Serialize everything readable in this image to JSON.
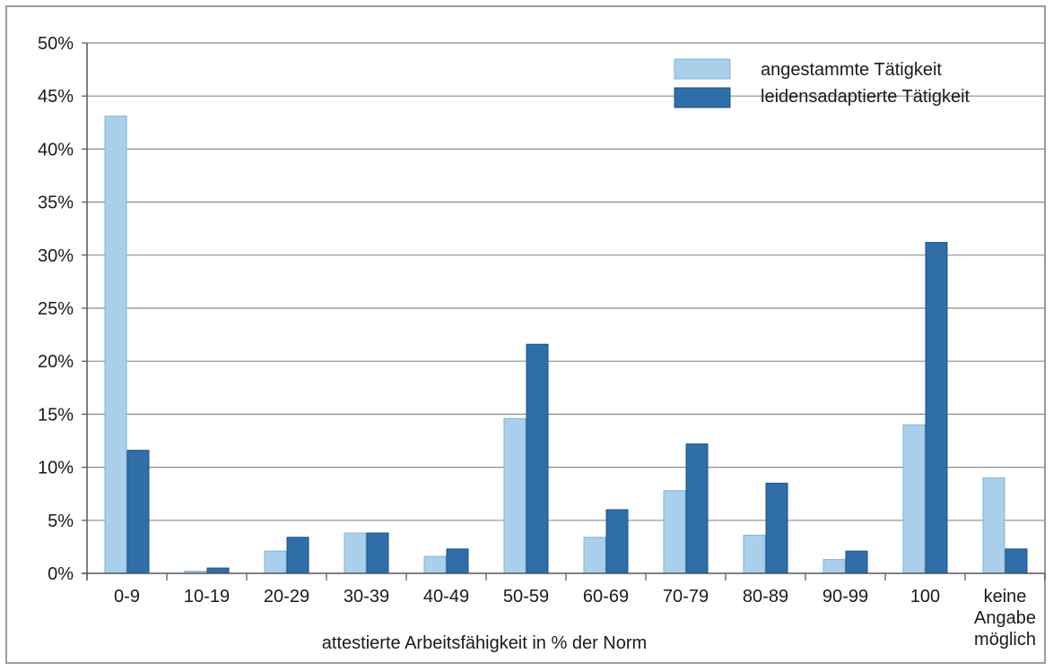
{
  "chart_data": {
    "type": "bar",
    "categories": [
      "0-9",
      "10-19",
      "20-29",
      "30-39",
      "40-49",
      "50-59",
      "60-69",
      "70-79",
      "80-89",
      "90-99",
      "100",
      "keine Angabe möglich"
    ],
    "category_lines": [
      [
        "0-9"
      ],
      [
        "10-19"
      ],
      [
        "20-29"
      ],
      [
        "30-39"
      ],
      [
        "40-49"
      ],
      [
        "50-59"
      ],
      [
        "60-69"
      ],
      [
        "70-79"
      ],
      [
        "80-89"
      ],
      [
        "90-99"
      ],
      [
        "100"
      ],
      [
        "keine",
        "Angabe",
        "möglich"
      ]
    ],
    "series": [
      {
        "name": "angestammte Tätigkeit",
        "color": "#a9cfea",
        "values": [
          43.1,
          0.2,
          2.1,
          3.8,
          1.6,
          14.6,
          3.4,
          7.8,
          3.6,
          1.3,
          14.0,
          9.0
        ]
      },
      {
        "name": "leidensadaptierte Tätigkeit",
        "color": "#2f6ea9",
        "values": [
          11.6,
          0.5,
          3.4,
          3.8,
          2.3,
          21.6,
          6.0,
          12.2,
          8.5,
          2.1,
          31.2,
          2.3
        ]
      }
    ],
    "xlabel": "attestierte Arbeitsfähigkeit in % der Norm",
    "ylabel": "",
    "ylim": [
      0,
      50
    ],
    "yticks": [
      "0%",
      "5%",
      "10%",
      "15%",
      "20%",
      "25%",
      "30%",
      "35%",
      "40%",
      "45%",
      "50%"
    ],
    "grid": true,
    "legend_position": "top-right"
  }
}
